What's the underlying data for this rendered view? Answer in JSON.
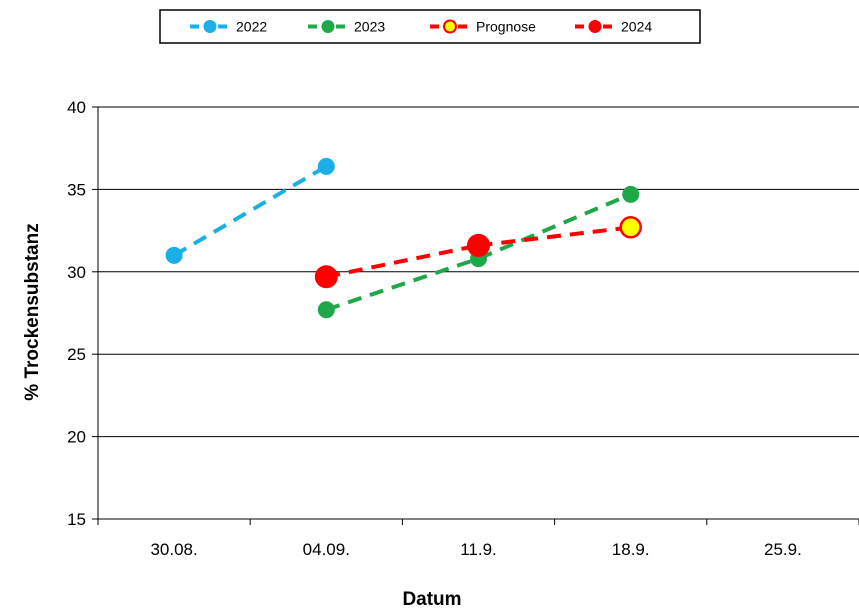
{
  "chart_data": {
    "type": "line",
    "title": "",
    "xlabel": "Datum",
    "ylabel": "% Trockensubstanz",
    "categories": [
      "30.08.",
      "04.09.",
      "11.9.",
      "18.9.",
      "25.9."
    ],
    "ylim": [
      15,
      40
    ],
    "yticks": [
      15,
      20,
      25,
      30,
      35,
      40
    ],
    "grid": "horizontal",
    "legend_position": "top-center",
    "series": [
      {
        "name": "2022",
        "color": "#1AAFE6",
        "marker": "circle",
        "points": [
          [
            0,
            31.0
          ],
          [
            1,
            36.4
          ]
        ]
      },
      {
        "name": "2023",
        "color": "#1FA84A",
        "marker": "circle",
        "points": [
          [
            1,
            27.7
          ],
          [
            2,
            30.8
          ],
          [
            3,
            34.7
          ]
        ]
      },
      {
        "name": "Prognose",
        "color": "#FF0000",
        "fill": "#FFFF00",
        "marker": "circle-hollow",
        "points": [
          [
            2,
            31.6
          ],
          [
            3,
            32.7
          ]
        ]
      },
      {
        "name": "2024",
        "color": "#FF0000",
        "marker": "circle-large",
        "points": [
          [
            1,
            29.7
          ],
          [
            2,
            31.6
          ]
        ]
      }
    ]
  }
}
